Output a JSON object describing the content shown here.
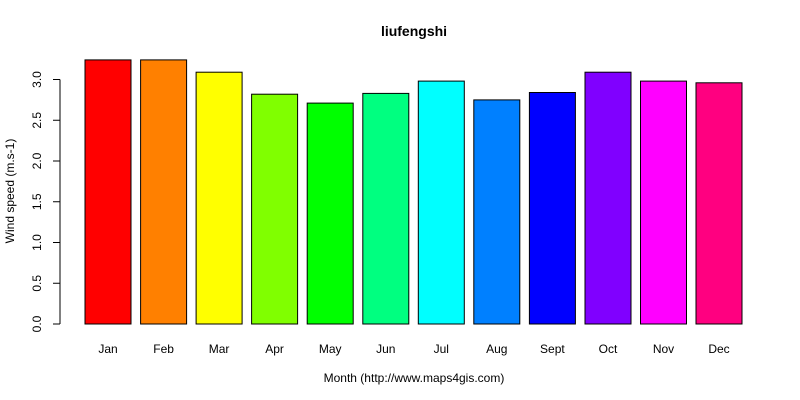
{
  "chart_data": {
    "type": "bar",
    "title": "liufengshi",
    "xlabel": "Month (http://www.maps4gis.com)",
    "ylabel": "Wind speed (m.s-1)",
    "categories": [
      "Jan",
      "Feb",
      "Mar",
      "Apr",
      "May",
      "Jun",
      "Jul",
      "Aug",
      "Sept",
      "Oct",
      "Nov",
      "Dec"
    ],
    "values": [
      3.24,
      3.24,
      3.09,
      2.82,
      2.71,
      2.83,
      2.98,
      2.75,
      2.84,
      3.09,
      2.98,
      2.96
    ],
    "colors": [
      "#FF0000",
      "#FF8000",
      "#FFFF00",
      "#80FF00",
      "#00FF00",
      "#00FF80",
      "#00FFFF",
      "#0080FF",
      "#0000FF",
      "#8000FF",
      "#FF00FF",
      "#FF0080"
    ],
    "yticks": [
      "0.0",
      "0.5",
      "1.0",
      "1.5",
      "2.0",
      "2.5",
      "3.0"
    ],
    "ylim": [
      0,
      3.3
    ],
    "grid": false,
    "legend": "none"
  }
}
